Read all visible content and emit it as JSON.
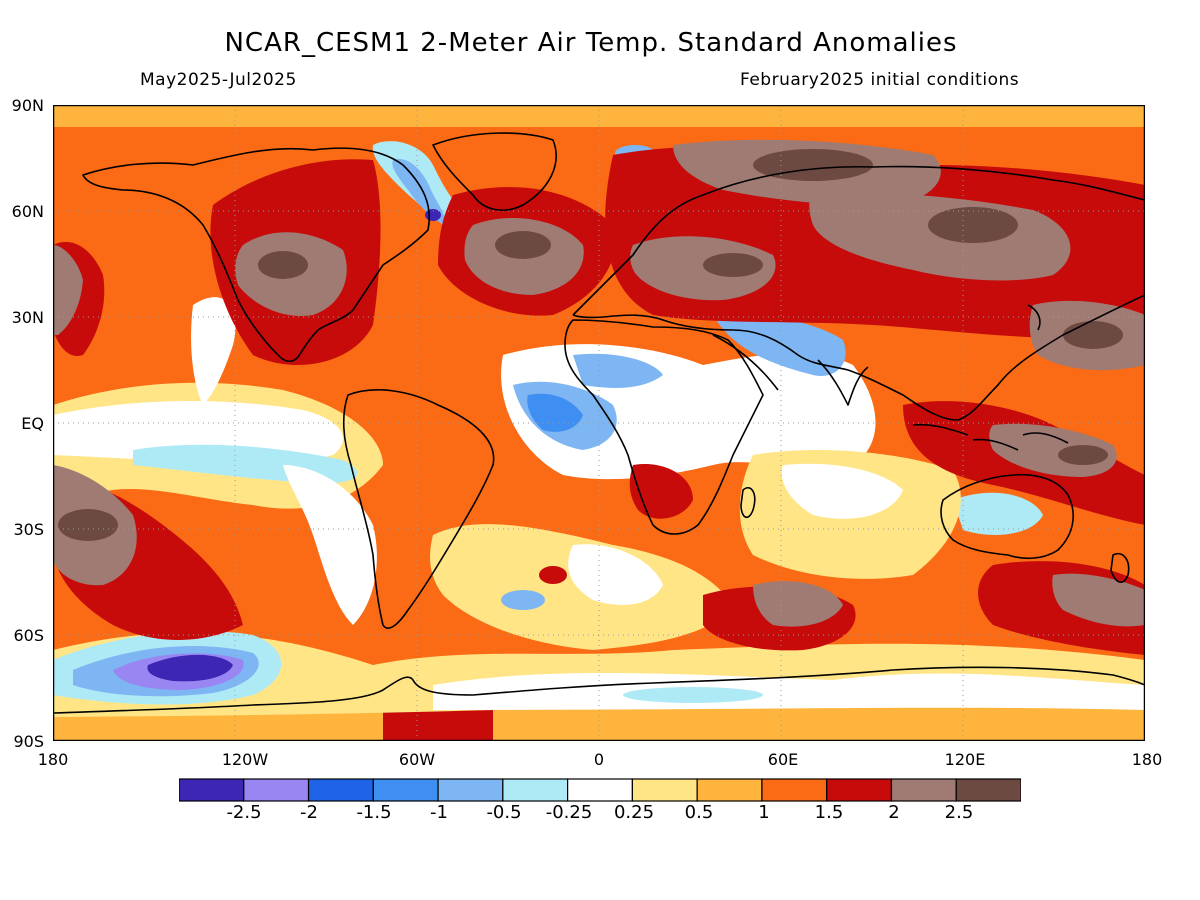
{
  "header": {
    "title": "NCAR_CESM1 2-Meter Air Temp. Standard Anomalies",
    "period": "May2025-Jul2025",
    "init": "February2025 initial conditions"
  },
  "map": {
    "lat_labels": [
      "90N",
      "60N",
      "30N",
      "EQ",
      "30S",
      "60S",
      "90S"
    ],
    "lon_labels": [
      "180",
      "120W",
      "60W",
      "0",
      "60E",
      "120E",
      "180"
    ],
    "lon_range": [
      -180,
      180
    ],
    "lat_range": [
      -90,
      90
    ],
    "ocean_dots_color": "#9a9a9a"
  },
  "legend": {
    "colors": [
      "#3d26b3",
      "#9a86f2",
      "#1f63e6",
      "#3f8ef2",
      "#7db6f2",
      "#aeeaf5",
      "#ffffff",
      "#ffe586",
      "#ffb53d",
      "#fb6a15",
      "#c70b0b",
      "#a07b73",
      "#6c4a42"
    ],
    "labels": [
      "-2.5",
      "-2",
      "-1.5",
      "-1",
      "-0.5",
      "-0.25",
      "0.25",
      "0.5",
      "1",
      "1.5",
      "2",
      "2.5"
    ]
  }
}
